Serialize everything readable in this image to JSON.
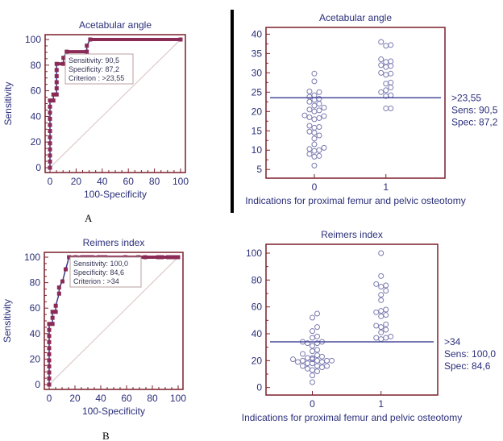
{
  "colors": {
    "axis": "#7a1f2b",
    "roc": "#8b2a55",
    "roc_line": "#3a3a8a",
    "diag": "#d8c0c0",
    "text": "#2b2f7a",
    "points": "#7a7ab0",
    "cutoff": "#4a4a9a"
  },
  "panels": {
    "A": "A",
    "B": "B"
  },
  "chart_data": [
    {
      "type": "line",
      "id": "roc-acetabular",
      "title": "Acetabular angle",
      "xlabel": "100-Specificity",
      "ylabel": "Sensitivity",
      "xlim": [
        0,
        100
      ],
      "ylim": [
        0,
        100
      ],
      "xticks": [
        0,
        20,
        40,
        60,
        80,
        100
      ],
      "yticks": [
        0,
        20,
        40,
        60,
        80,
        100
      ],
      "grid": false,
      "series": [
        {
          "name": "ROC",
          "x": [
            0,
            0,
            0,
            0,
            0,
            0,
            0,
            0,
            0,
            0,
            0,
            0,
            2.6,
            2.6,
            5.1,
            5.1,
            5.1,
            5.1,
            5.1,
            5.1,
            10.3,
            10.3,
            12.8,
            28.2,
            28.2,
            30.8,
            100
          ],
          "y": [
            0,
            4.8,
            9.5,
            14.3,
            19,
            23.8,
            28.6,
            33.3,
            38.1,
            42.9,
            47.6,
            52.4,
            52.4,
            57.1,
            57.1,
            61.9,
            66.7,
            71.4,
            76.2,
            81,
            81,
            85.7,
            90.5,
            90.5,
            95.2,
            100,
            100
          ]
        }
      ],
      "legend": [
        "Sensitivity: 90,5",
        "Specificity: 87,2",
        "Criterion : >23,55"
      ]
    },
    {
      "type": "scatter",
      "id": "dot-acetabular",
      "title": "Acetabular angle",
      "xlabel": "Indications for proximal femur and pelvic osteotomy",
      "ylabel": "",
      "categories": [
        "0",
        "1"
      ],
      "ylim": [
        4,
        40.5
      ],
      "yticks": [
        5,
        10,
        15,
        20,
        25,
        30,
        35,
        40
      ],
      "cutoff": 23.55,
      "cutoff_notes": [
        ">23,55",
        "Sens: 90,5",
        "Spec: 87,2"
      ],
      "series": [
        {
          "name": "0",
          "values": [
            6,
            8.3,
            8.5,
            9,
            9.8,
            10,
            10.3,
            10.6,
            11.5,
            13,
            13.8,
            14.5,
            14.8,
            15.8,
            16,
            16.3,
            18,
            18.3,
            18.5,
            18.8,
            19,
            20,
            20.3,
            20.5,
            21,
            21.5,
            22,
            22.5,
            23,
            23.3,
            23.8,
            24.2,
            25,
            25.2,
            27.8,
            29.8
          ]
        },
        {
          "name": "1",
          "values": [
            20.8,
            20.8,
            24,
            24.2,
            25,
            25.5,
            26.2,
            27.2,
            27.5,
            29.5,
            29.8,
            30,
            31.5,
            31.8,
            32,
            32.8,
            33,
            33.5,
            37,
            37.2,
            38
          ]
        }
      ]
    },
    {
      "type": "line",
      "id": "roc-reimers",
      "title": "Reimers index",
      "xlabel": "100-Specificity",
      "ylabel": "Sensitivity",
      "xlim": [
        0,
        100
      ],
      "ylim": [
        0,
        100
      ],
      "xticks": [
        0,
        20,
        40,
        60,
        80,
        100
      ],
      "yticks": [
        0,
        20,
        40,
        60,
        80,
        100
      ],
      "grid": false,
      "series": [
        {
          "name": "ROC",
          "x": [
            0,
            0,
            0,
            0,
            0,
            0,
            0,
            0,
            0,
            0,
            0,
            2.6,
            2.6,
            2.6,
            5.1,
            5.1,
            7.7,
            7.7,
            10.3,
            12.8,
            15.4,
            20.5,
            25.6,
            28.2,
            30.8,
            33.3,
            38.5,
            41,
            43.6,
            59,
            69.2,
            74.4,
            84.6,
            87.2,
            92.3,
            94.9,
            97.4,
            100
          ],
          "y": [
            0,
            4.8,
            9.5,
            14.3,
            19,
            23.8,
            28.6,
            33.3,
            38.1,
            42.9,
            47.6,
            47.6,
            52.4,
            57.1,
            57.1,
            61.9,
            71.4,
            76.2,
            81,
            90.5,
            100,
            100,
            100,
            100,
            100,
            100,
            100,
            100,
            100,
            100,
            100,
            100,
            100,
            100,
            100,
            100,
            100,
            100
          ]
        }
      ],
      "legend": [
        "Sensitivity: 100,0",
        "Specificity: 84,6",
        "Criterion : >34"
      ]
    },
    {
      "type": "scatter",
      "id": "dot-reimers",
      "title": "Reimers index",
      "xlabel": "Indications for proximal femur and pelvic osteotomy",
      "ylabel": "",
      "categories": [
        "0",
        "1"
      ],
      "ylim": [
        -2,
        103
      ],
      "yticks": [
        0,
        20,
        40,
        60,
        80,
        100
      ],
      "cutoff": 34,
      "cutoff_notes": [
        ">34",
        "Sens: 100,0",
        "Spec: 84,6"
      ],
      "series": [
        {
          "name": "0",
          "values": [
            4,
            9,
            12,
            13,
            14,
            15,
            16,
            16,
            16,
            18,
            18,
            19,
            19,
            20,
            20,
            20,
            20,
            21,
            21,
            21,
            22,
            22,
            23,
            24,
            25,
            27,
            28,
            31,
            33,
            33,
            34,
            34,
            37,
            38,
            42,
            45,
            52,
            55
          ]
        },
        {
          "name": "1",
          "values": [
            36,
            37,
            37,
            38,
            41,
            43,
            45,
            46,
            47,
            53,
            54,
            56,
            57,
            58,
            65,
            69,
            72,
            75,
            76,
            77,
            83,
            100
          ]
        }
      ]
    }
  ]
}
